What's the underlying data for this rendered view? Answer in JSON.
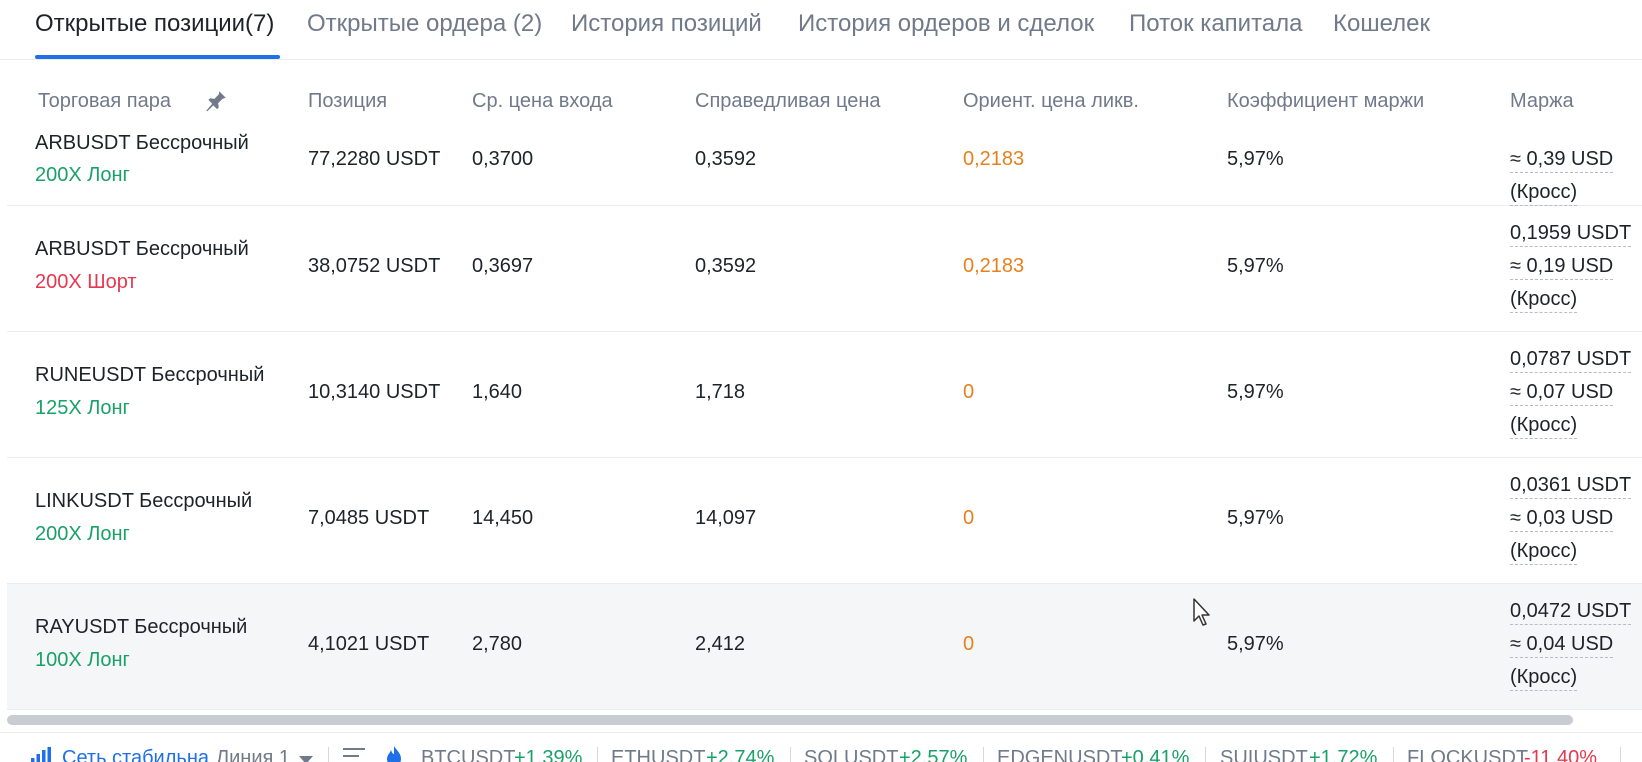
{
  "tabs": [
    {
      "label": "Открытые позиции(7)",
      "active": true
    },
    {
      "label": "Открытые ордера (2)"
    },
    {
      "label": "История позиций"
    },
    {
      "label": "История ордеров и сделок"
    },
    {
      "label": "Поток капитала"
    },
    {
      "label": "Кошелек"
    }
  ],
  "columns": {
    "pair": "Торговая пара",
    "position": "Позиция",
    "entry": "Ср. цена входа",
    "fair": "Справедливая цена",
    "liq": "Ориент. цена ликв.",
    "ratio": "Коэффициент маржи",
    "margin": "Маржа"
  },
  "rows": [
    {
      "pair": "ARBUSDT Бессрочный",
      "leverage": "200X Лонг",
      "side": "long",
      "position": "77,2280 USDT",
      "entry": "0,3700",
      "fair": "0,3592",
      "liq": "0,2183",
      "ratio": "5,97%",
      "margin_usdt": "",
      "margin_usd": "≈ 0,39 USD",
      "mode": "(Кросс)"
    },
    {
      "pair": "ARBUSDT Бессрочный",
      "leverage": "200X Шорт",
      "side": "short",
      "position": "38,0752 USDT",
      "entry": "0,3697",
      "fair": "0,3592",
      "liq": "0,2183",
      "ratio": "5,97%",
      "margin_usdt": "0,1959 USDT",
      "margin_usd": "≈ 0,19 USD",
      "mode": "(Кросс)"
    },
    {
      "pair": "RUNEUSDT Бессрочный",
      "leverage": "125X Лонг",
      "side": "long",
      "position": "10,3140 USDT",
      "entry": "1,640",
      "fair": "1,718",
      "liq": "0",
      "ratio": "5,97%",
      "margin_usdt": "0,0787 USDT",
      "margin_usd": "≈ 0,07 USD",
      "mode": "(Кросс)"
    },
    {
      "pair": "LINKUSDT Бессрочный",
      "leverage": "200X Лонг",
      "side": "long",
      "position": "7,0485 USDT",
      "entry": "14,450",
      "fair": "14,097",
      "liq": "0",
      "ratio": "5,97%",
      "margin_usdt": "0,0361 USDT",
      "margin_usd": "≈ 0,03 USD",
      "mode": "(Кросс)"
    },
    {
      "pair": "RAYUSDT Бессрочный",
      "leverage": "100X Лонг",
      "side": "long",
      "position": "4,1021 USDT",
      "entry": "2,780",
      "fair": "2,412",
      "liq": "0",
      "ratio": "5,97%",
      "margin_usdt": "0,0472 USDT",
      "margin_usd": "≈ 0,04 USD",
      "mode": "(Кросс)"
    }
  ],
  "footer": {
    "network": "Сеть стабильна",
    "line": "Линия 1",
    "tickers": [
      {
        "symbol": "BTCUSDT",
        "change": "+1,39%",
        "dir": "up"
      },
      {
        "symbol": "ETHUSDT",
        "change": "+2,74%",
        "dir": "up"
      },
      {
        "symbol": "SOLUSDT",
        "change": "+2,57%",
        "dir": "up"
      },
      {
        "symbol": "EDGENUSDT",
        "change": "+0,41%",
        "dir": "up"
      },
      {
        "symbol": "SUIUSDT",
        "change": "+1,72%",
        "dir": "up"
      },
      {
        "symbol": "FLOCKUSDT",
        "change": "-11,40%",
        "dir": "down"
      }
    ]
  },
  "colors": {
    "accent": "#1e6fe8",
    "long": "#1aa168",
    "short": "#e5384f",
    "liq": "#e8801c"
  },
  "icons": {
    "pin": "pin-icon",
    "signal": "signal-bars-icon",
    "menu": "menu-lines-icon",
    "flame": "flame-icon",
    "caret": "caret-down-icon",
    "cursor": "mouse-cursor-icon"
  }
}
